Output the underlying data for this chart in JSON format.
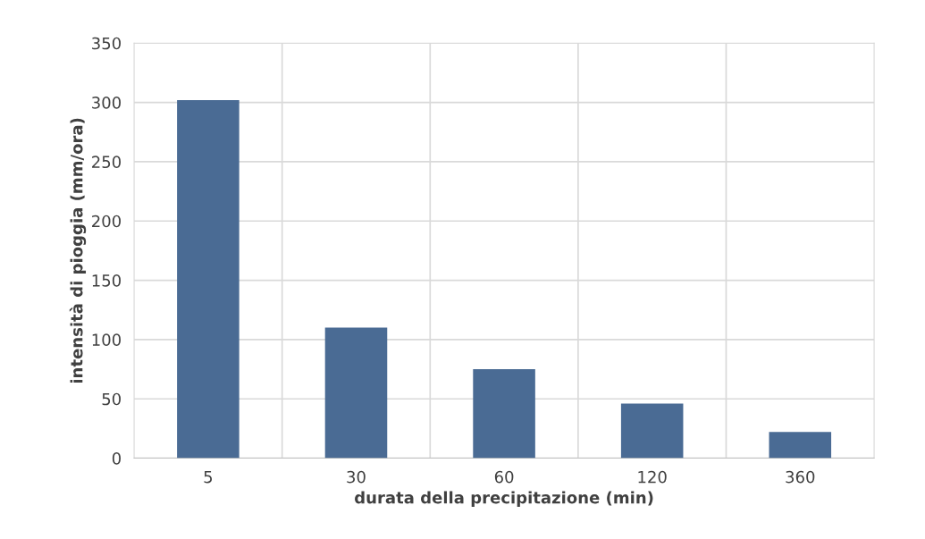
{
  "chart_data": {
    "type": "bar",
    "xlabel": "durata della precipitazione (min)",
    "ylabel": "intensità di pioggia (mm/ora)",
    "categories": [
      "5",
      "30",
      "60",
      "120",
      "360"
    ],
    "values": [
      302,
      110,
      75,
      46,
      22
    ],
    "color": "#4a6b94",
    "ylim": [
      0,
      350
    ],
    "yticks": [
      0,
      50,
      100,
      150,
      200,
      250,
      300,
      350
    ],
    "grid": true
  }
}
